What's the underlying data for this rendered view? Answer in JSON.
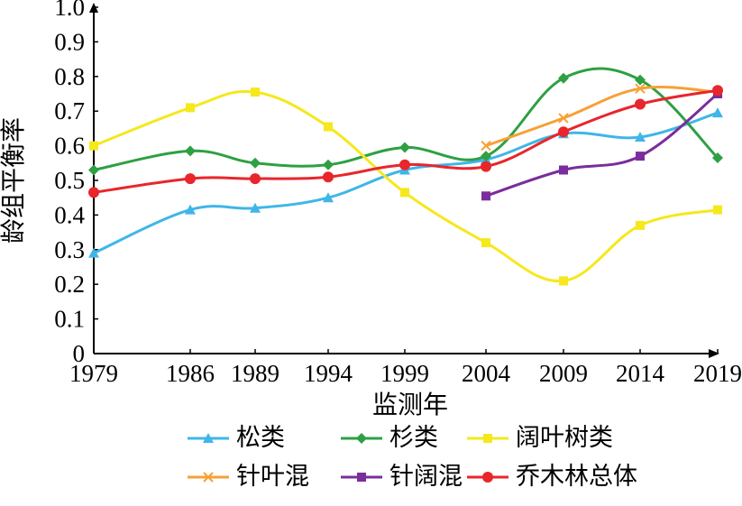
{
  "chart_data": {
    "type": "line",
    "title": "",
    "xlabel": "监测年",
    "ylabel": "龄组平衡率",
    "x": [
      "1979",
      "1986",
      "1989",
      "1994",
      "1999",
      "2004",
      "2009",
      "2014",
      "2019"
    ],
    "yticks": [
      "0",
      "0.1",
      "0.2",
      "0.3",
      "0.4",
      "0.5",
      "0.6",
      "0.7",
      "0.8",
      "0.9",
      "1.0"
    ],
    "ylim": [
      0,
      1.0
    ],
    "legend_position": "bottom",
    "series": [
      {
        "name": "松类",
        "color": "#3fb6e8",
        "marker": "triangle",
        "values": [
          0.29,
          0.415,
          0.42,
          0.45,
          0.53,
          0.56,
          0.635,
          0.625,
          0.695
        ]
      },
      {
        "name": "杉类",
        "color": "#2ea043",
        "marker": "diamond",
        "values": [
          0.53,
          0.585,
          0.55,
          0.545,
          0.595,
          0.57,
          0.795,
          0.79,
          0.565
        ]
      },
      {
        "name": "阔叶树类",
        "color": "#f5e81c",
        "marker": "square",
        "values": [
          0.6,
          0.71,
          0.755,
          0.655,
          0.465,
          0.32,
          0.21,
          0.37,
          0.415
        ]
      },
      {
        "name": "针叶混",
        "color": "#f7a035",
        "marker": "x",
        "values": [
          null,
          null,
          null,
          null,
          null,
          0.6,
          0.68,
          0.765,
          0.755
        ]
      },
      {
        "name": "针阔混",
        "color": "#7a2d9c",
        "marker": "square",
        "values": [
          null,
          null,
          null,
          null,
          null,
          0.455,
          0.53,
          0.57,
          0.75
        ]
      },
      {
        "name": "乔木林总体",
        "color": "#e8262b",
        "marker": "circle",
        "values": [
          0.465,
          0.505,
          0.505,
          0.51,
          0.545,
          0.54,
          0.64,
          0.72,
          0.76
        ]
      }
    ]
  }
}
